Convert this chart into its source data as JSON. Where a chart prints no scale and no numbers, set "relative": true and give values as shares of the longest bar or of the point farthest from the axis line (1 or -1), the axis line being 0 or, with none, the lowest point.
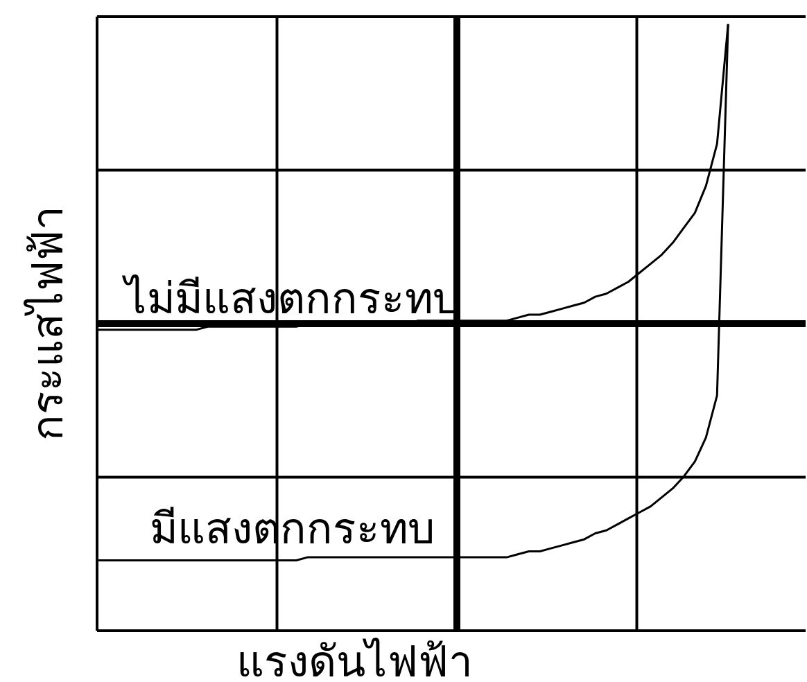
{
  "chart_data": {
    "type": "line",
    "relative": true,
    "grid": true,
    "marker": "none",
    "line_style": "solid",
    "xlabel": "แรงดันไฟฟ้า",
    "ylabel": "กระแสไฟฟ้า",
    "categories": [
      null,
      null,
      null,
      null,
      null,
      null,
      null,
      null,
      null,
      null,
      null,
      null,
      null,
      null,
      null,
      null,
      null,
      null,
      null,
      null,
      null,
      null,
      null,
      null,
      null,
      null,
      null,
      null,
      null,
      null,
      null,
      null,
      null,
      null,
      null,
      null,
      null,
      null,
      null,
      null,
      null,
      null,
      null,
      null,
      null,
      null,
      null,
      null,
      null,
      null,
      null,
      null,
      null,
      null,
      null,
      null,
      null,
      null,
      null,
      null,
      null,
      null,
      null,
      null,
      null
    ],
    "series": [
      {
        "name": "ไม่มีแสงตกกระทบ",
        "color": "#000000",
        "values": [
          -0.02,
          -0.02,
          -0.02,
          -0.02,
          -0.02,
          -0.02,
          -0.02,
          -0.02,
          -0.02,
          -0.02,
          -0.01,
          -0.01,
          -0.01,
          -0.01,
          -0.01,
          -0.01,
          -0.01,
          -0.01,
          -0.01,
          0,
          0,
          0,
          0,
          0,
          0,
          0,
          0,
          0,
          0,
          0.01,
          0.01,
          0.01,
          0.01,
          0.01,
          0.01,
          0.01,
          0.01,
          0.01,
          0.02,
          0.03,
          0.03,
          0.04,
          0.05,
          0.06,
          0.07,
          0.09,
          0.1,
          0.12,
          0.14,
          0.17,
          0.2,
          0.23,
          0.27,
          0.32,
          0.37,
          0.46,
          0.6,
          1,
          null,
          null,
          null,
          null,
          null,
          null,
          null
        ]
      },
      {
        "name": "มีแสงตกกระทบ",
        "color": "#000000",
        "values": [
          -0.79,
          -0.79,
          -0.79,
          -0.79,
          -0.79,
          -0.79,
          -0.79,
          -0.79,
          -0.79,
          -0.79,
          -0.79,
          -0.79,
          -0.79,
          -0.79,
          -0.79,
          -0.79,
          -0.79,
          -0.79,
          -0.79,
          -0.78,
          -0.78,
          -0.78,
          -0.78,
          -0.78,
          -0.78,
          -0.78,
          -0.78,
          -0.78,
          -0.78,
          -0.78,
          -0.78,
          -0.78,
          -0.78,
          -0.78,
          -0.78,
          -0.78,
          -0.78,
          -0.78,
          -0.77,
          -0.76,
          -0.76,
          -0.75,
          -0.74,
          -0.73,
          -0.72,
          -0.7,
          -0.69,
          -0.67,
          -0.65,
          -0.63,
          -0.61,
          -0.58,
          -0.55,
          -0.51,
          -0.46,
          -0.38,
          -0.24,
          1,
          null,
          null,
          null,
          null,
          null,
          null,
          null
        ]
      }
    ]
  }
}
